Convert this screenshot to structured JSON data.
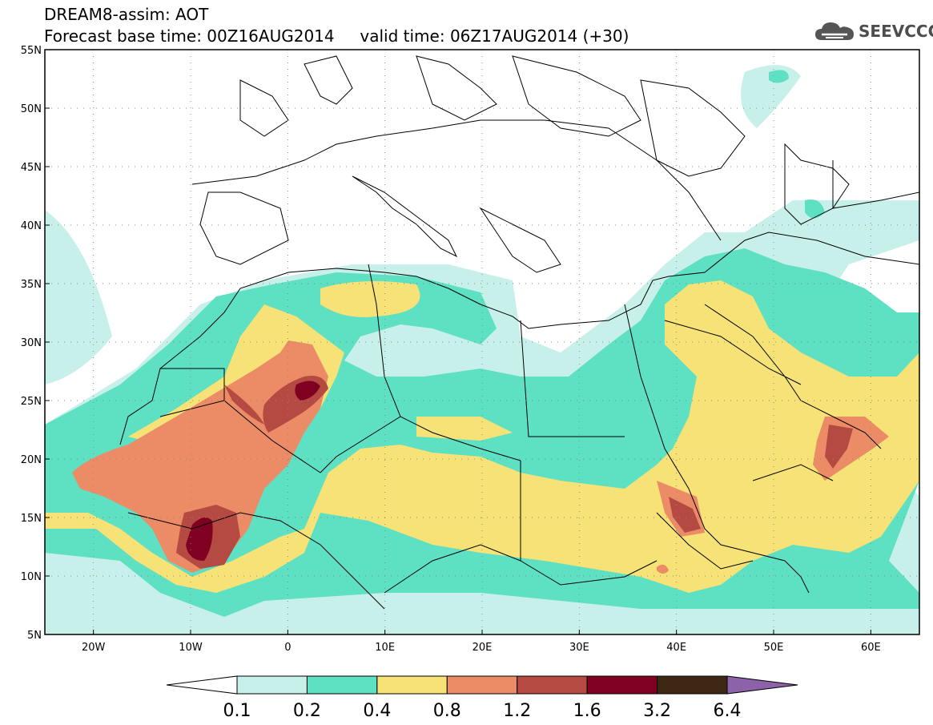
{
  "header": {
    "title": "DREAM8-assim: AOT",
    "subtitle": "Forecast base time: 00Z16AUG2014     valid time: 06Z17AUG2014 (+30)",
    "logo_text": "SEEVCCC"
  },
  "map": {
    "lon_range": [
      -25,
      65
    ],
    "lat_range": [
      5,
      55
    ],
    "lat_labels": [
      "5N",
      "10N",
      "15N",
      "20N",
      "25N",
      "30N",
      "35N",
      "40N",
      "45N",
      "50N",
      "55N"
    ],
    "lon_labels": [
      "20W",
      "10W",
      "0",
      "10E",
      "20E",
      "30E",
      "40E",
      "50E",
      "60E"
    ],
    "grid": "dotted"
  },
  "colorbar": {
    "labels": [
      "0.1",
      "0.2",
      "0.4",
      "0.8",
      "1.2",
      "1.6",
      "3.2",
      "6.4"
    ],
    "colors": [
      "#ffffff",
      "#c8f0ea",
      "#5ee0c2",
      "#f6e276",
      "#ec8c66",
      "#b44a42",
      "#800022",
      "#3e2814",
      "#8c62a8"
    ]
  }
}
